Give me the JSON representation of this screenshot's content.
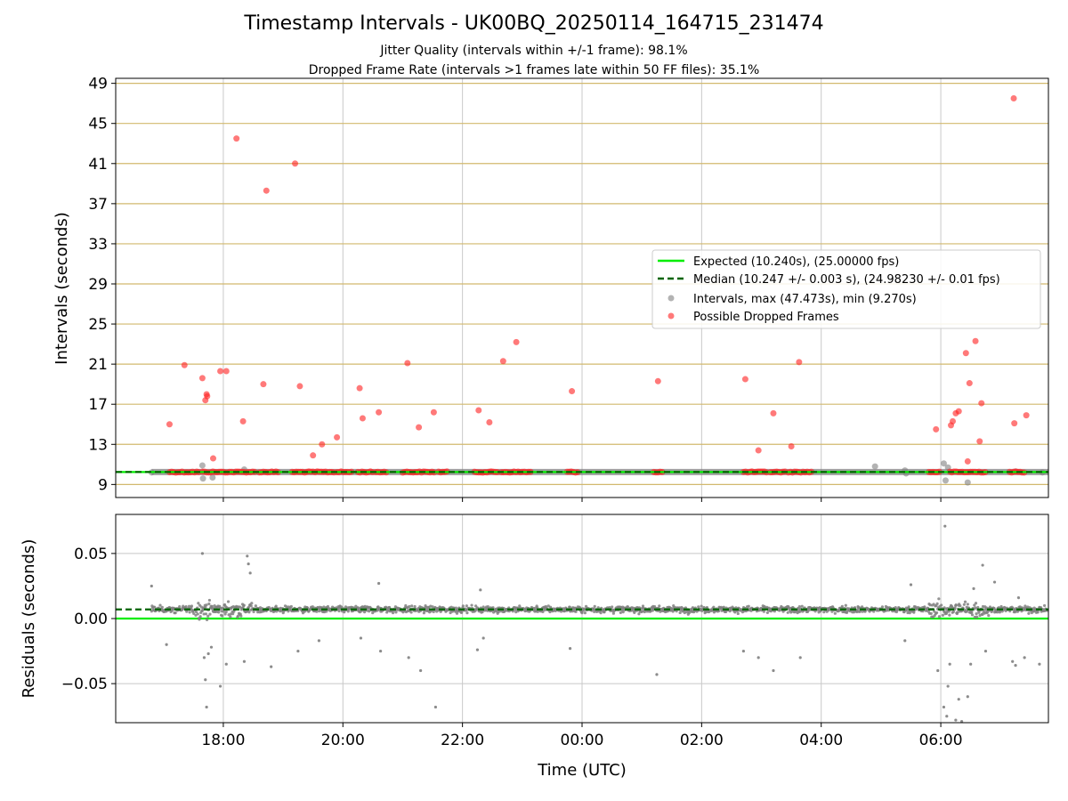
{
  "title": "Timestamp Intervals - UK00BQ_20250114_164715_231474",
  "subtitle_lines": [
    "Jitter Quality (intervals within +/-1 frame): 98.1%",
    "Dropped Frame Rate (intervals >1 frames late within 50 FF files): 35.1%"
  ],
  "colors": {
    "expected": "#00ee00",
    "median": "#006400",
    "intervals": "#808080",
    "dropped": "#ff2020",
    "hgrid_top": "#d2b96e",
    "grid": "#c8c8c8"
  },
  "chart_data": [
    {
      "type": "scatter",
      "ylabel": "Intervals (seconds)",
      "ylim": [
        7.7,
        49.5
      ],
      "y_ticks": [
        "9",
        "13",
        "17",
        "21",
        "25",
        "29",
        "33",
        "37",
        "41",
        "45",
        "49"
      ],
      "x_range_hours": [
        16.2,
        31.8
      ],
      "expected_interval": 10.24,
      "median_interval": 10.247,
      "legend": {
        "placement": "center-right",
        "entries": [
          "Expected (10.240s), (25.00000 fps)",
          "Median (10.247 +/- 0.003 s), (24.98230 +/- 0.01 fps)",
          "Intervals, max (47.473s), min (9.270s)",
          "Possible Dropped Frames"
        ]
      },
      "dropped_frames": [
        [
          17.1,
          15.0
        ],
        [
          17.35,
          20.9
        ],
        [
          17.65,
          19.6
        ],
        [
          17.7,
          17.4
        ],
        [
          17.72,
          18.0
        ],
        [
          17.73,
          17.8
        ],
        [
          17.83,
          11.6
        ],
        [
          17.95,
          20.3
        ],
        [
          18.05,
          20.3
        ],
        [
          18.22,
          43.5
        ],
        [
          18.33,
          15.3
        ],
        [
          18.67,
          19.0
        ],
        [
          18.72,
          38.3
        ],
        [
          19.2,
          41.0
        ],
        [
          19.28,
          18.8
        ],
        [
          19.5,
          11.9
        ],
        [
          19.65,
          13.0
        ],
        [
          19.9,
          13.7
        ],
        [
          20.28,
          18.6
        ],
        [
          20.33,
          15.6
        ],
        [
          20.6,
          16.2
        ],
        [
          21.08,
          21.1
        ],
        [
          21.27,
          14.7
        ],
        [
          21.52,
          16.2
        ],
        [
          22.27,
          16.4
        ],
        [
          22.45,
          15.2
        ],
        [
          22.68,
          21.3
        ],
        [
          22.9,
          23.2
        ],
        [
          23.83,
          18.3
        ],
        [
          25.27,
          19.3
        ],
        [
          26.73,
          19.5
        ],
        [
          26.95,
          12.4
        ],
        [
          27.2,
          16.1
        ],
        [
          27.5,
          12.8
        ],
        [
          27.63,
          21.2
        ],
        [
          29.92,
          14.5
        ],
        [
          30.17,
          14.9
        ],
        [
          30.2,
          15.3
        ],
        [
          30.25,
          16.1
        ],
        [
          30.3,
          16.3
        ],
        [
          30.42,
          22.1
        ],
        [
          30.45,
          11.3
        ],
        [
          30.48,
          19.1
        ],
        [
          30.58,
          23.3
        ],
        [
          30.65,
          13.3
        ],
        [
          30.68,
          17.1
        ],
        [
          31.23,
          15.1
        ],
        [
          31.22,
          47.5
        ],
        [
          31.43,
          15.9
        ]
      ],
      "dropped_clusters_hours": [
        [
          17.1,
          17.6
        ],
        [
          17.65,
          18.55
        ],
        [
          18.6,
          18.95
        ],
        [
          19.15,
          19.85
        ],
        [
          19.9,
          20.15
        ],
        [
          20.25,
          20.5
        ],
        [
          20.55,
          20.75
        ],
        [
          21.0,
          21.55
        ],
        [
          21.6,
          21.75
        ],
        [
          22.2,
          22.6
        ],
        [
          22.65,
          23.15
        ],
        [
          23.75,
          23.95
        ],
        [
          25.2,
          25.35
        ],
        [
          26.7,
          27.1
        ],
        [
          27.15,
          27.4
        ],
        [
          27.45,
          27.85
        ],
        [
          29.8,
          30.0
        ],
        [
          30.15,
          30.75
        ],
        [
          31.15,
          31.4
        ]
      ],
      "gray_outliers": [
        [
          16.8,
          10.2
        ],
        [
          17.65,
          10.9
        ],
        [
          17.66,
          9.6
        ],
        [
          17.82,
          9.7
        ],
        [
          18.35,
          10.5
        ],
        [
          28.9,
          10.8
        ],
        [
          29.4,
          10.4
        ],
        [
          29.42,
          10.1
        ],
        [
          30.05,
          11.1
        ],
        [
          30.08,
          9.4
        ],
        [
          30.12,
          10.7
        ],
        [
          30.45,
          9.2
        ],
        [
          31.25,
          10.3
        ],
        [
          31.7,
          10.2
        ]
      ]
    },
    {
      "type": "scatter",
      "ylabel": "Residuals (seconds)",
      "xlabel": "Time (UTC)",
      "ylim": [
        -0.08,
        0.08
      ],
      "y_ticks": [
        "0.05",
        "0.00",
        "−0.05"
      ],
      "x_ticks": [
        "18:00",
        "20:00",
        "22:00",
        "00:00",
        "02:00",
        "04:00",
        "06:00"
      ],
      "expected_residual": 0.0,
      "median_residual": 0.007,
      "residual_outliers": [
        [
          16.8,
          0.025
        ],
        [
          17.05,
          -0.02
        ],
        [
          17.65,
          0.05
        ],
        [
          17.68,
          -0.03
        ],
        [
          17.7,
          -0.047
        ],
        [
          17.72,
          -0.068
        ],
        [
          17.75,
          -0.027
        ],
        [
          17.8,
          -0.022
        ],
        [
          17.95,
          -0.052
        ],
        [
          18.05,
          -0.035
        ],
        [
          18.35,
          -0.033
        ],
        [
          18.4,
          0.048
        ],
        [
          18.42,
          0.042
        ],
        [
          18.45,
          0.035
        ],
        [
          18.8,
          -0.037
        ],
        [
          19.25,
          -0.025
        ],
        [
          19.6,
          -0.017
        ],
        [
          20.3,
          -0.015
        ],
        [
          20.6,
          0.027
        ],
        [
          20.63,
          -0.025
        ],
        [
          21.1,
          -0.03
        ],
        [
          21.3,
          -0.04
        ],
        [
          21.55,
          -0.068
        ],
        [
          22.25,
          -0.024
        ],
        [
          22.3,
          0.022
        ],
        [
          22.35,
          -0.015
        ],
        [
          23.8,
          -0.023
        ],
        [
          25.25,
          -0.043
        ],
        [
          26.7,
          -0.025
        ],
        [
          26.95,
          -0.03
        ],
        [
          27.2,
          -0.04
        ],
        [
          27.65,
          -0.03
        ],
        [
          29.4,
          -0.017
        ],
        [
          29.5,
          0.026
        ],
        [
          29.95,
          -0.04
        ],
        [
          30.05,
          -0.068
        ],
        [
          30.07,
          0.071
        ],
        [
          30.1,
          -0.075
        ],
        [
          30.12,
          -0.052
        ],
        [
          30.15,
          -0.035
        ],
        [
          30.25,
          -0.078
        ],
        [
          30.3,
          -0.062
        ],
        [
          30.35,
          -0.079
        ],
        [
          30.45,
          -0.06
        ],
        [
          30.5,
          -0.035
        ],
        [
          30.55,
          0.023
        ],
        [
          30.7,
          0.041
        ],
        [
          30.75,
          -0.025
        ],
        [
          30.9,
          0.028
        ],
        [
          31.2,
          -0.033
        ],
        [
          31.25,
          -0.036
        ],
        [
          31.3,
          0.016
        ],
        [
          31.4,
          -0.03
        ],
        [
          31.65,
          -0.035
        ]
      ]
    }
  ]
}
